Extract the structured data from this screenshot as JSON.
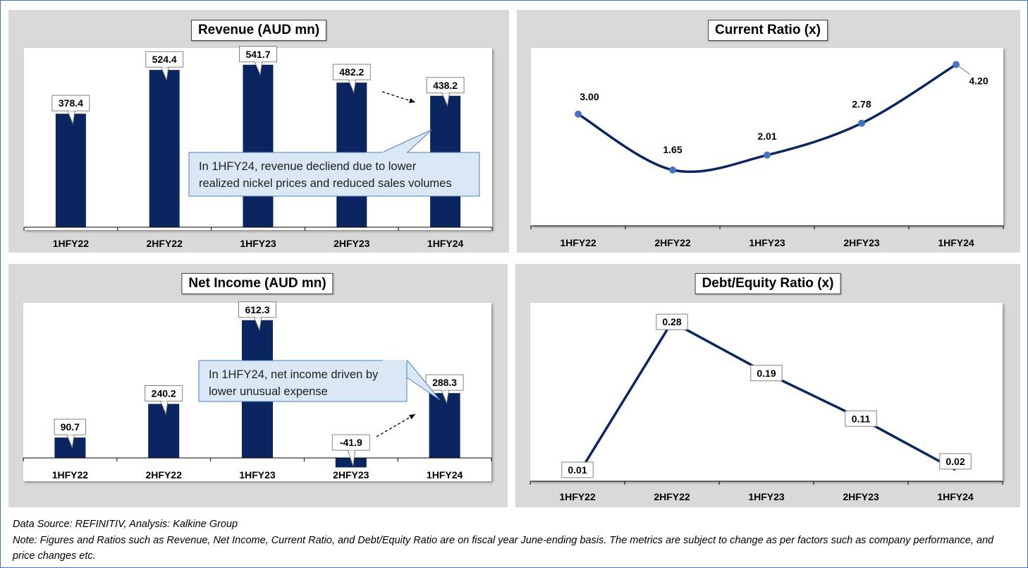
{
  "footer": {
    "source": "Data Source: REFINITIV, Analysis: Kalkine Group",
    "note": "Note: Figures and Ratios such as Revenue, Net Income, Current Ratio, and Debt/Equity Ratio are on fiscal year June-ending basis. The metrics are subject to change as per factors such as company performance, and price changes etc."
  },
  "colors": {
    "bar": "#0b2560",
    "line": "#0b2560",
    "marker": "#4472c4",
    "panel": "#d9d9d9",
    "callout_fill": "#dae8f6",
    "callout_border": "#4f81bd"
  },
  "chart_data": [
    {
      "id": "revenue",
      "type": "bar",
      "title": "Revenue (AUD mn)",
      "categories": [
        "1HFY22",
        "2HFY22",
        "1HFY23",
        "2HFY23",
        "1HFY24"
      ],
      "values": [
        378.4,
        524.4,
        541.7,
        482.2,
        438.2
      ],
      "labels": [
        "378.4",
        "524.4",
        "541.7",
        "482.2",
        "438.2"
      ],
      "ylim": [
        0,
        560
      ],
      "grid": false,
      "annotation": "In 1HFY24, revenue decliend due to lower realized nickel prices and reduced sales volumes"
    },
    {
      "id": "current_ratio",
      "type": "line",
      "title": "Current Ratio (x)",
      "categories": [
        "1HFY22",
        "2HFY22",
        "1HFY23",
        "2HFY23",
        "1HFY24"
      ],
      "values": [
        3.0,
        1.65,
        2.01,
        2.78,
        4.2
      ],
      "labels": [
        "3.00",
        "1.65",
        "2.01",
        "2.78",
        "4.20"
      ],
      "ylim": [
        0.3,
        4.6
      ],
      "grid": false
    },
    {
      "id": "net_income",
      "type": "bar",
      "title": "Net Income (AUD mn)",
      "categories": [
        "1HFY22",
        "2HFY22",
        "1HFY23",
        "2HFY23",
        "1HFY24"
      ],
      "values": [
        90.7,
        240.2,
        612.3,
        -41.9,
        288.3
      ],
      "labels": [
        "90.7",
        "240.2",
        "612.3",
        "-41.9",
        "288.3"
      ],
      "ylim": [
        -50,
        690
      ],
      "grid": false,
      "annotation": "In 1HFY24, net income driven by lower unusual expense"
    },
    {
      "id": "debt_equity",
      "type": "line",
      "title": "Debt/Equity Ratio (x)",
      "categories": [
        "1HFY22",
        "2HFY22",
        "1HFY23",
        "2HFY23",
        "1HFY24"
      ],
      "values": [
        0.01,
        0.28,
        0.19,
        0.11,
        0.02
      ],
      "labels": [
        "0.01",
        "0.28",
        "0.19",
        "0.11",
        "0.02"
      ],
      "ylim": [
        0,
        0.31
      ],
      "grid": false
    }
  ]
}
